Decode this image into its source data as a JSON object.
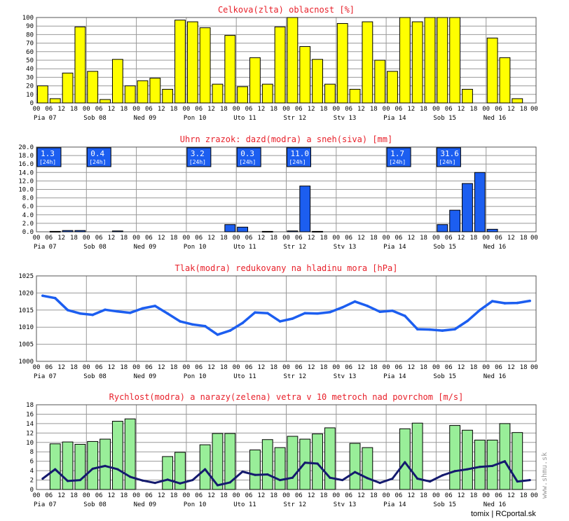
{
  "charts": {
    "clouds": {
      "title": "Celkova(zlta) oblacnost [%]",
      "y_ticks": [
        "100",
        "90",
        "80",
        "70",
        "60",
        "50",
        "40",
        "30",
        "20",
        "10",
        "0"
      ]
    },
    "precip": {
      "title": "Uhrn zrazok: dazd(modra) a sneh(siva) [mm]",
      "y_ticks": [
        "20.0",
        "18.0",
        "16.0",
        "14.0",
        "12.0",
        "10.0",
        "8.0",
        "6.0",
        "4.0",
        "2.0",
        "0.0"
      ],
      "badge_unit": "[24h]"
    },
    "pressure": {
      "title": "Tlak(modra) redukovany na hladinu mora [hPa]",
      "y_ticks": [
        "1025",
        "1020",
        "1015",
        "1010",
        "1005",
        "1000"
      ]
    },
    "wind": {
      "title": "Rychlost(modra) a narazy(zelena) vetra v 10 metroch nad povrchom [m/s]",
      "y_ticks": [
        "18",
        "16",
        "14",
        "12",
        "10",
        "8",
        "6",
        "4",
        "2",
        "0"
      ]
    }
  },
  "time_axis": {
    "hour_labels": [
      "00",
      "06",
      "12",
      "18",
      "00",
      "06",
      "12",
      "18",
      "00",
      "06",
      "12",
      "18",
      "00",
      "06",
      "12",
      "18",
      "00",
      "06",
      "12",
      "18",
      "00",
      "06",
      "12",
      "18",
      "00",
      "06",
      "12",
      "18",
      "00",
      "06",
      "12",
      "18",
      "00",
      "06",
      "12",
      "18",
      "00",
      "06",
      "12",
      "18"
    ],
    "day_labels": [
      "Pia 07",
      "Sob 08",
      "Ned 09",
      "Pon 10",
      "Uto 11",
      "Str 12",
      "Stv 13",
      "Pia 14",
      "Sob 15",
      "Ned 16"
    ]
  },
  "footer": {
    "credit": "tomix | RCportal.sk",
    "vertical_credit": "www.shmu.sk"
  },
  "colors": {
    "cloud_bar": "#ffff00",
    "precip_bar": "#1c5ef0",
    "pressure_line": "#1c5ef0",
    "gust_bar": "#99ee99",
    "wind_line": "#141a6e",
    "badge": "#1c5ef0",
    "title": "#e8202a",
    "grid": "#999999"
  },
  "chart_data": [
    {
      "type": "bar",
      "title": "Celkova(zlta) oblacnost [%]",
      "ylim": [
        0,
        100
      ],
      "x_step_hours": 6,
      "values": [
        20,
        5,
        35,
        89,
        37,
        4,
        51,
        20,
        26,
        29,
        16,
        97,
        95,
        88,
        22,
        79,
        19,
        53,
        22,
        89,
        100,
        66,
        51,
        22,
        93,
        16,
        95,
        50,
        37,
        100,
        95,
        100,
        100,
        100,
        16,
        0,
        76,
        53,
        5,
        0
      ]
    },
    {
      "type": "bar",
      "title": "Uhrn zrazok: dazd(modra) a sneh(siva) [mm]",
      "ylim": [
        0,
        20
      ],
      "x_step_hours": 6,
      "values": [
        0,
        0.1,
        0.3,
        0.3,
        0,
        0,
        0.2,
        0,
        0,
        0,
        0,
        0,
        0,
        0,
        0,
        1.7,
        1.1,
        0,
        0.1,
        0,
        0.2,
        10.8,
        0.1,
        0,
        0,
        0,
        0,
        0,
        0,
        0,
        0,
        0,
        1.7,
        5.1,
        11.4,
        14.0,
        0.6,
        0,
        0,
        0
      ],
      "daily_totals": [
        {
          "day": "Pia 07",
          "value": "1.3"
        },
        {
          "day": "Sob 08",
          "value": "0.4"
        },
        {
          "day": "Pon 10",
          "value": "3.2"
        },
        {
          "day": "Uto 11",
          "value": "0.3"
        },
        {
          "day": "Str 12",
          "value": "11.0"
        },
        {
          "day": "Pia 14",
          "value": "1.7"
        },
        {
          "day": "Sob 15",
          "value": "31.6"
        }
      ]
    },
    {
      "type": "line",
      "title": "Tlak(modra) redukovany na hladinu mora [hPa]",
      "ylim": [
        1000,
        1025
      ],
      "x_step_hours": 6,
      "values": [
        1019.2,
        1018.5,
        1015.0,
        1014.0,
        1013.6,
        1015.1,
        1014.6,
        1014.2,
        1015.5,
        1016.2,
        1014.0,
        1011.7,
        1010.8,
        1010.3,
        1007.8,
        1009.0,
        1011.2,
        1014.3,
        1014.1,
        1011.7,
        1012.5,
        1014.1,
        1014.0,
        1014.4,
        1015.8,
        1017.5,
        1016.2,
        1014.5,
        1014.8,
        1013.3,
        1009.4,
        1009.3,
        1009.0,
        1009.4,
        1011.8,
        1015.0,
        1017.6,
        1017.0,
        1017.1,
        1017.7
      ]
    },
    {
      "type": "bar",
      "title": "Rychlost(modra) a narazy(zelena) vetra v 10 metroch nad povrchom [m/s]",
      "ylim": [
        0,
        18
      ],
      "x_step_hours": 6,
      "series": [
        {
          "kind": "bar",
          "values": [
            0,
            9.7,
            10.1,
            9.6,
            10.2,
            10.7,
            14.5,
            15.0,
            0,
            0,
            7.0,
            7.9,
            0,
            9.5,
            11.9,
            11.9,
            0,
            8.4,
            10.6,
            8.9,
            11.3,
            10.7,
            11.8,
            13.1,
            0,
            9.8,
            8.9,
            0,
            0,
            12.9,
            14.1,
            0,
            0,
            13.6,
            12.6,
            10.5,
            10.5,
            14.0,
            12.1,
            0
          ]
        },
        {
          "kind": "line",
          "values": [
            2.3,
            4.3,
            1.8,
            2.0,
            4.4,
            5.0,
            4.3,
            2.7,
            1.9,
            1.4,
            2.1,
            1.3,
            2.0,
            4.3,
            0.9,
            1.5,
            3.8,
            3.1,
            3.2,
            2.0,
            2.5,
            5.7,
            5.5,
            2.5,
            2.0,
            3.7,
            2.4,
            1.4,
            2.3,
            5.8,
            2.3,
            1.7,
            3.0,
            3.9,
            4.3,
            4.8,
            5.0,
            6.0,
            1.7,
            2.0
          ]
        }
      ]
    }
  ]
}
